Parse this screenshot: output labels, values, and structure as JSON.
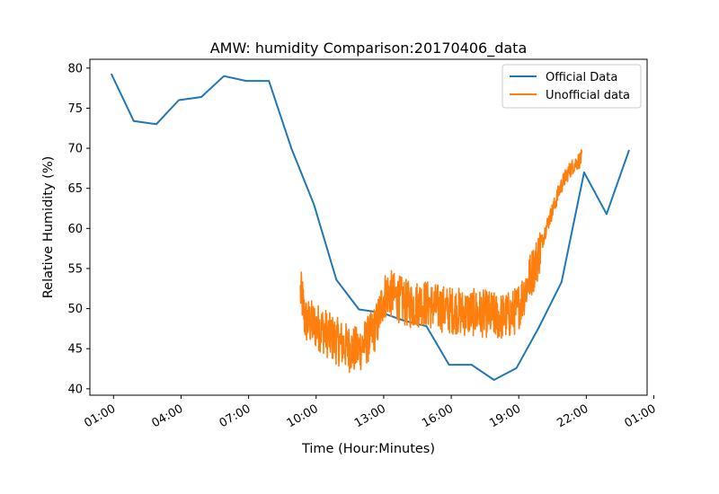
{
  "chart_data": {
    "type": "line",
    "title": "AMW: humidity Comparison:20170406_data",
    "xlabel": "Time (Hour:Minutes)",
    "ylabel": "Relative Humidity (%)",
    "x_unit": "hours since 00:00 on 2017-04-06",
    "xlim": [
      -0.05,
      24.7
    ],
    "ylim": [
      39.2,
      81.1
    ],
    "x_ticks": [
      {
        "value": 1,
        "label": "01:00"
      },
      {
        "value": 4,
        "label": "04:00"
      },
      {
        "value": 7,
        "label": "07:00"
      },
      {
        "value": 10,
        "label": "10:00"
      },
      {
        "value": 13,
        "label": "13:00"
      },
      {
        "value": 16,
        "label": "16:00"
      },
      {
        "value": 19,
        "label": "19:00"
      },
      {
        "value": 22,
        "label": "22:00"
      },
      {
        "value": 25,
        "label": "01:00"
      }
    ],
    "y_ticks": [
      40,
      45,
      50,
      55,
      60,
      65,
      70,
      75,
      80
    ],
    "grid": false,
    "legend_position": "upper right",
    "series": [
      {
        "name": "Official Data",
        "color": "#1f77b4",
        "x": [
          0.9,
          1.9,
          2.9,
          3.9,
          4.9,
          5.9,
          6.9,
          7.9,
          8.9,
          9.9,
          10.9,
          11.9,
          12.9,
          13.9,
          14.9,
          15.9,
          16.9,
          17.9,
          18.9,
          19.9,
          20.9,
          21.9,
          22.9,
          23.9
        ],
        "y": [
          79.3,
          73.4,
          73.0,
          76.0,
          76.4,
          79.0,
          78.4,
          78.4,
          70.0,
          63.0,
          53.6,
          49.9,
          49.5,
          48.5,
          47.8,
          43.0,
          43.0,
          41.1,
          42.6,
          47.7,
          53.3,
          67.0,
          61.8,
          69.8
        ]
      },
      {
        "name": "Unofficial data",
        "color": "#ff7f0e",
        "x": [
          9.3,
          9.4,
          9.5,
          9.7,
          10.0,
          10.3,
          10.6,
          10.9,
          11.2,
          11.5,
          11.8,
          12.1,
          12.4,
          12.7,
          13.0,
          13.2,
          13.5,
          13.8,
          14.1,
          14.4,
          14.7,
          15.0,
          15.3,
          15.6,
          15.9,
          16.2,
          16.5,
          16.8,
          17.1,
          17.4,
          17.7,
          18.0,
          18.3,
          18.6,
          18.9,
          19.1,
          19.3,
          19.5,
          19.8,
          20.0,
          20.2,
          20.4,
          20.6,
          20.8,
          21.0,
          21.2,
          21.4,
          21.6,
          21.8
        ],
        "y": [
          52.0,
          51.0,
          48.5,
          48.3,
          47.8,
          47.4,
          46.5,
          46.0,
          45.5,
          45.0,
          44.8,
          45.5,
          46.5,
          48.0,
          51.5,
          52.0,
          51.5,
          51.0,
          50.5,
          50.5,
          50.8,
          50.5,
          50.2,
          50.0,
          49.8,
          49.8,
          49.5,
          49.5,
          49.5,
          49.4,
          49.3,
          49.0,
          49.0,
          49.2,
          49.8,
          51.0,
          52.5,
          54.0,
          56.0,
          58.0,
          60.0,
          61.5,
          63.0,
          64.8,
          66.0,
          67.0,
          67.8,
          68.3,
          68.8
        ],
        "noise_amplitude": 3.0
      }
    ]
  }
}
